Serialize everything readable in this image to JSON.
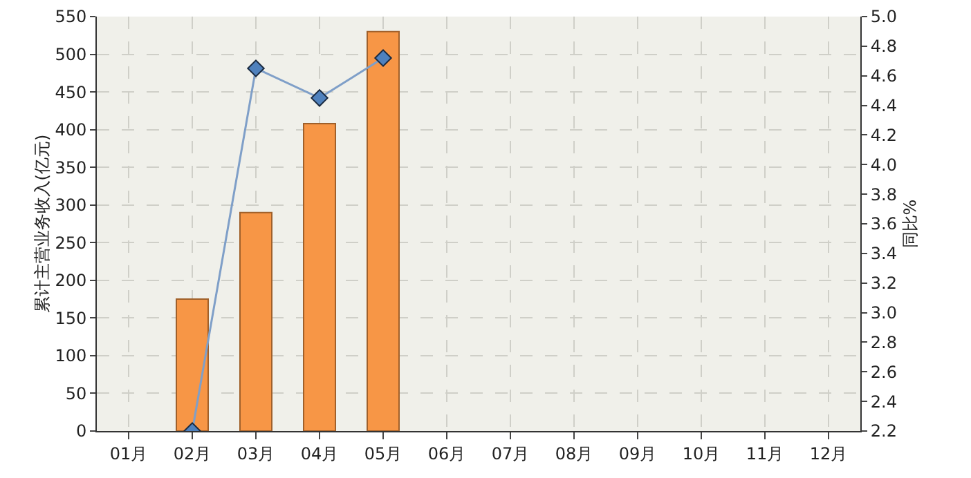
{
  "chart_data": {
    "type": "bar",
    "ylabel": "累计主营业务收入(亿元)",
    "y2label": "同比%",
    "categories": [
      "01月",
      "02月",
      "03月",
      "04月",
      "05月",
      "06月",
      "07月",
      "08月",
      "09月",
      "10月",
      "11月",
      "12月"
    ],
    "series": [
      {
        "color": "#f79646",
        "values": [
          null,
          175,
          290,
          408,
          530,
          null,
          null,
          null,
          null,
          null,
          null,
          null
        ]
      },
      {
        "type": "line",
        "axis": "y2",
        "color": "#7f9fc8",
        "marker": "diamond",
        "values": [
          null,
          2.2,
          4.65,
          4.45,
          4.72,
          null,
          null,
          null,
          null,
          null,
          null,
          null
        ]
      }
    ],
    "ylim": [
      0,
      550
    ],
    "yticks": [
      0,
      50,
      100,
      150,
      200,
      250,
      300,
      350,
      400,
      450,
      500,
      550
    ],
    "y2lim": [
      2.2,
      5.0
    ],
    "y2ticks": [
      {
        "value": 2.2,
        "label": "2.2"
      },
      {
        "value": 2.4,
        "label": "2.4"
      },
      {
        "value": 2.6,
        "label": "2.6"
      },
      {
        "value": 2.8,
        "label": "2.8"
      },
      {
        "value": 3.0,
        "label": "3.0"
      },
      {
        "value": 3.2,
        "label": "3.2"
      },
      {
        "value": 3.4,
        "label": "3.4"
      },
      {
        "value": 3.6,
        "label": "3.6"
      },
      {
        "value": 3.8,
        "label": "3.8"
      },
      {
        "value": 4.0,
        "label": "4.0"
      },
      {
        "value": 4.2,
        "label": "4.2"
      },
      {
        "value": 4.4,
        "label": "4.4"
      },
      {
        "value": 4.6,
        "label": "4.6"
      },
      {
        "value": 4.8,
        "label": "4.8"
      },
      {
        "value": 5.0,
        "label": "5.0"
      }
    ],
    "grid": true,
    "legend": false
  }
}
